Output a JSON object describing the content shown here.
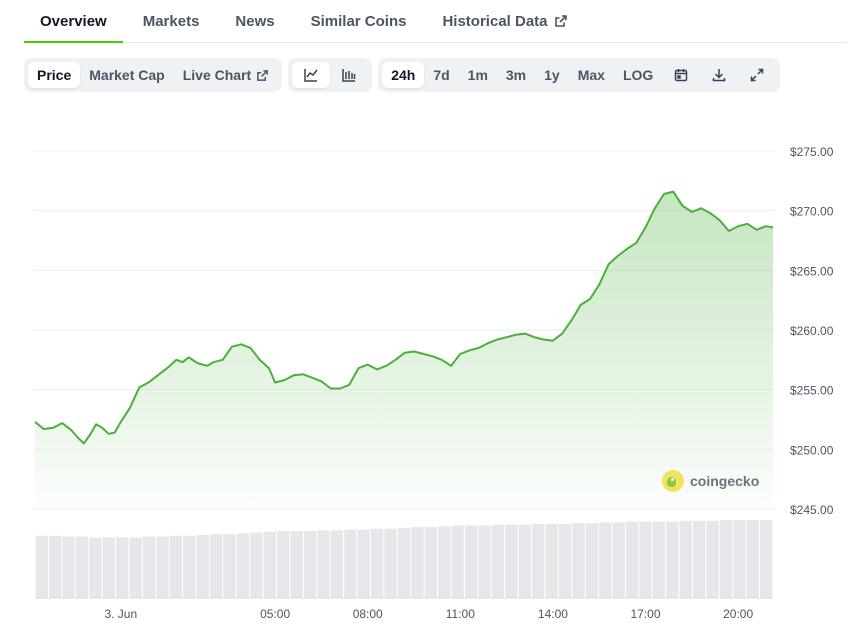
{
  "tabs": [
    {
      "label": "Overview"
    },
    {
      "label": "Markets"
    },
    {
      "label": "News"
    },
    {
      "label": "Similar Coins"
    },
    {
      "label": "Historical Data"
    }
  ],
  "toolbar": {
    "type_buttons": [
      "Price",
      "Market Cap",
      "Live Chart"
    ],
    "range_buttons": [
      "24h",
      "7d",
      "1m",
      "3m",
      "1y",
      "Max",
      "LOG"
    ],
    "icons": [
      "line-chart-icon",
      "candlestick-chart-icon",
      "calendar-icon",
      "download-icon",
      "fullscreen-icon"
    ]
  },
  "watermark": {
    "text": "coingecko"
  },
  "colors": {
    "line": "#4caf3c",
    "accent": "#4bcc00",
    "volume": "#e5e7eb",
    "grid": "#eef0f2"
  },
  "chart_data": {
    "type": "area",
    "ylim": [
      245,
      275
    ],
    "ytick_values": [
      275,
      270,
      265,
      260,
      255,
      250,
      245
    ],
    "ytick_labels": [
      "$275.00",
      "$270.00",
      "$265.00",
      "$260.00",
      "$255.00",
      "$250.00",
      "$245.00"
    ],
    "xtick_labels": [
      "3. Jun",
      "05:00",
      "08:00",
      "11:00",
      "14:00",
      "17:00",
      "20:00"
    ],
    "xtick_hours": [
      0,
      5,
      8,
      11,
      14,
      17,
      20
    ],
    "x_range_hours": [
      -2.78,
      21.13
    ],
    "series": [
      {
        "x": [
          -2.78,
          -2.5,
          -2.2,
          -1.9,
          -1.6,
          -1.4,
          -1.2,
          -1.0,
          -0.8,
          -0.6,
          -0.4,
          -0.2,
          0.0,
          0.3,
          0.6,
          0.9,
          1.2,
          1.5,
          1.8,
          2.0,
          2.2,
          2.5,
          2.8,
          3.0,
          3.3,
          3.6,
          3.9,
          4.2,
          4.5,
          4.8,
          5.0,
          5.3,
          5.6,
          5.9,
          6.2,
          6.5,
          6.8,
          7.1,
          7.4,
          7.7,
          8.0,
          8.3,
          8.6,
          8.9,
          9.2,
          9.5,
          9.8,
          10.1,
          10.4,
          10.7,
          11.0,
          11.3,
          11.6,
          11.9,
          12.2,
          12.5,
          12.8,
          13.1,
          13.4,
          13.7,
          14.0,
          14.3,
          14.6,
          14.9,
          15.2,
          15.5,
          15.8,
          16.1,
          16.4,
          16.7,
          17.0,
          17.3,
          17.6,
          17.9,
          18.2,
          18.5,
          18.8,
          19.1,
          19.4,
          19.7,
          20.0,
          20.3,
          20.6,
          20.9,
          21.13
        ],
        "y": [
          252.3,
          251.7,
          251.8,
          252.2,
          251.6,
          251.0,
          250.5,
          251.2,
          252.1,
          251.8,
          251.3,
          251.4,
          252.3,
          253.5,
          255.2,
          255.6,
          256.2,
          256.8,
          257.5,
          257.3,
          257.7,
          257.2,
          257.0,
          257.3,
          257.5,
          258.6,
          258.8,
          258.5,
          257.5,
          256.8,
          255.6,
          255.8,
          256.2,
          256.3,
          256.0,
          255.7,
          255.1,
          255.1,
          255.4,
          256.8,
          257.1,
          256.7,
          257.0,
          257.5,
          258.1,
          258.2,
          258.0,
          257.8,
          257.5,
          257.0,
          258.0,
          258.3,
          258.5,
          258.9,
          259.2,
          259.4,
          259.6,
          259.7,
          259.4,
          259.2,
          259.1,
          259.7,
          260.8,
          262.1,
          262.6,
          263.8,
          265.5,
          266.2,
          266.8,
          267.3,
          268.6,
          270.2,
          271.4,
          271.6,
          270.4,
          269.9,
          270.2,
          269.8,
          269.2,
          268.3,
          268.7,
          268.9,
          268.4,
          268.7,
          268.6
        ]
      }
    ],
    "volume": {
      "values": [
        0.8,
        0.8,
        0.79,
        0.79,
        0.78,
        0.78,
        0.78,
        0.78,
        0.79,
        0.79,
        0.8,
        0.8,
        0.81,
        0.82,
        0.82,
        0.83,
        0.84,
        0.85,
        0.86,
        0.86,
        0.86,
        0.87,
        0.87,
        0.88,
        0.88,
        0.89,
        0.89,
        0.9,
        0.91,
        0.91,
        0.92,
        0.93,
        0.93,
        0.93,
        0.94,
        0.94,
        0.94,
        0.95,
        0.95,
        0.95,
        0.96,
        0.96,
        0.97,
        0.97,
        0.98,
        0.98,
        0.98,
        0.98,
        0.99,
        0.99,
        0.99,
        1.0,
        1.0,
        1.0,
        1.0
      ]
    }
  }
}
